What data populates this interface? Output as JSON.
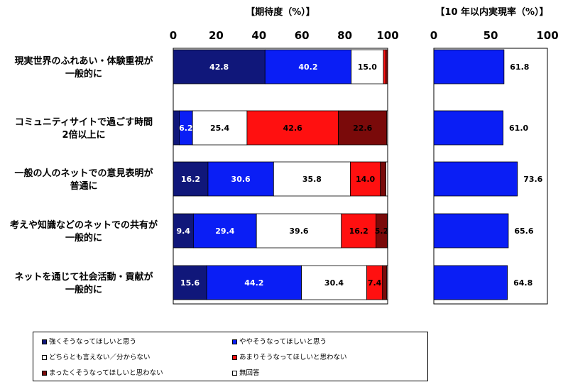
{
  "titles": {
    "left": "【期待度（%）】",
    "right": "【10 年以内実現率（%）】"
  },
  "colors": {
    "strongly": "#10177a",
    "somewhat": "#0a1ef5",
    "neutral": "#ffffff",
    "not_much": "#ff1010",
    "not_at_all": "#7a0a0a",
    "no_answer": "#ffffff",
    "realization": "#0a1ef5"
  },
  "chart_data": [
    {
      "type": "bar",
      "orientation": "horizontal",
      "stacked": true,
      "title": "【期待度（%）】",
      "xlim": [
        0,
        100
      ],
      "ticks": [
        "0",
        "20",
        "40",
        "60",
        "80",
        "100"
      ],
      "categories": [
        "現実世界のふれあい・体験重視が\n一般的に",
        "コミュニティサイトで過ごす時間\n2倍以上に",
        "一般の人のネットでの意見表明が\n普通に",
        "考えや知識などのネットでの共有が\n一般的に",
        "ネットを通じて社会活動・貢献が\n一般的に"
      ],
      "series": [
        {
          "name": "強くそうなってほしいと思う",
          "values": [
            42.8,
            2.8,
            16.2,
            9.4,
            15.6
          ],
          "labels": [
            "42.8",
            "",
            "16.2",
            "9.4",
            "15.6"
          ]
        },
        {
          "name": "ややそうなってほしいと思う",
          "values": [
            40.2,
            6.2,
            30.6,
            29.4,
            44.2
          ],
          "labels": [
            "40.2",
            "6.2",
            "30.6",
            "29.4",
            "44.2"
          ]
        },
        {
          "name": "どちらとも言えない／分からない",
          "values": [
            15.0,
            25.4,
            35.8,
            39.6,
            30.4
          ],
          "labels": [
            "15.0",
            "25.4",
            "35.8",
            "39.6",
            "30.4"
          ]
        },
        {
          "name": "あまりそうなってほしいと思わない",
          "values": [
            1.2,
            42.6,
            14.0,
            16.2,
            7.4
          ],
          "labels": [
            "",
            "42.6",
            "14.0",
            "16.2",
            "7.4"
          ]
        },
        {
          "name": "まったくそうなってほしいと思わない",
          "values": [
            0.8,
            22.6,
            2.6,
            5.2,
            2.0
          ],
          "labels": [
            "",
            "22.6",
            "",
            "5.2",
            ""
          ]
        },
        {
          "name": "無回答",
          "values": [
            0.0,
            0.4,
            0.8,
            0.2,
            0.4
          ],
          "labels": [
            "",
            "",
            "",
            "",
            ""
          ]
        }
      ]
    },
    {
      "type": "bar",
      "orientation": "horizontal",
      "title": "【10 年以内実現率（%）】",
      "xlim": [
        0,
        100
      ],
      "ticks": [
        "0",
        "50",
        "100"
      ],
      "values": [
        61.8,
        61.0,
        73.6,
        65.6,
        64.8
      ],
      "labels": [
        "61.8",
        "61.0",
        "73.6",
        "65.6",
        "64.8"
      ]
    }
  ]
}
